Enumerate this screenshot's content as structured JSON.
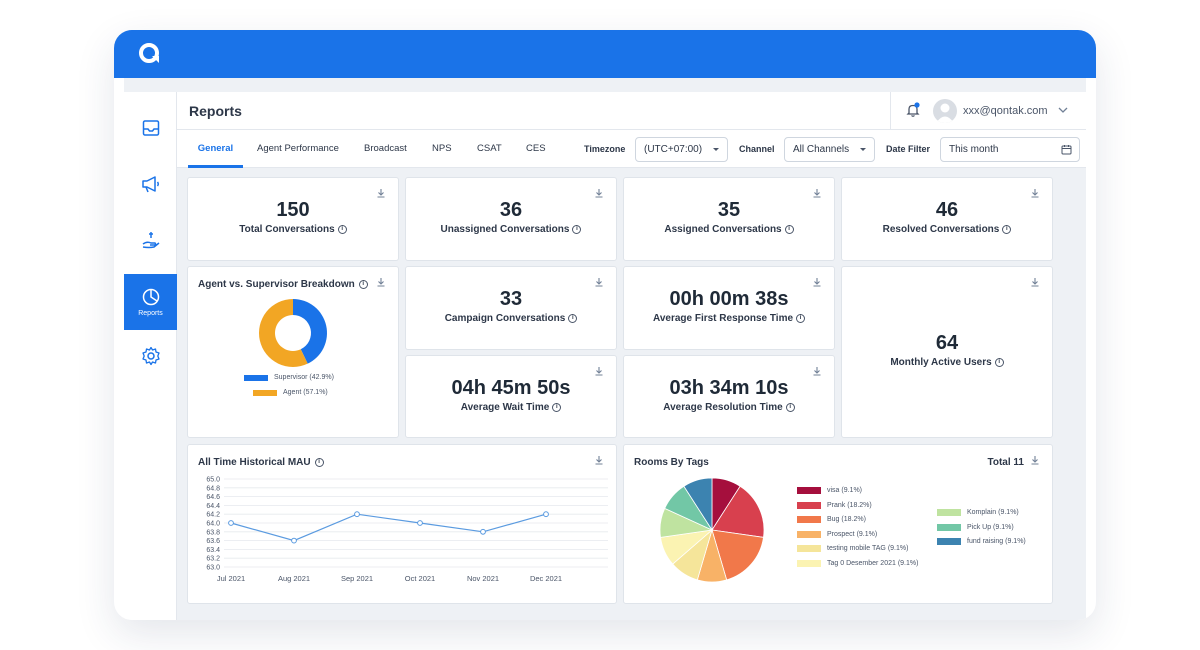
{
  "header": {
    "title": "Reports",
    "user_email": "xxx@qontak.com"
  },
  "sidebar": {
    "items": [
      {
        "icon": "inbox-icon"
      },
      {
        "icon": "megaphone-icon"
      },
      {
        "icon": "hand-coin-icon"
      },
      {
        "icon": "pie-chart-icon",
        "label": "Reports",
        "active": true
      },
      {
        "icon": "gear-icon"
      }
    ]
  },
  "tabs": [
    "General",
    "Agent Performance",
    "Broadcast",
    "NPS",
    "CSAT",
    "CES"
  ],
  "filters": {
    "timezone_label": "Timezone",
    "timezone_value": "(UTC+07:00)",
    "channel_label": "Channel",
    "channel_value": "All Channels",
    "date_label": "Date Filter",
    "date_value": "This month"
  },
  "stats": {
    "total": {
      "value": "150",
      "label": "Total Conversations"
    },
    "unassigned": {
      "value": "36",
      "label": "Unassigned Conversations"
    },
    "assigned": {
      "value": "35",
      "label": "Assigned Conversations"
    },
    "resolved": {
      "value": "46",
      "label": "Resolved Conversations"
    },
    "campaign": {
      "value": "33",
      "label": "Campaign Conversations"
    },
    "first_response": {
      "value": "00h 00m 38s",
      "label": "Average First Response Time"
    },
    "wait": {
      "value": "04h 45m 50s",
      "label": "Average Wait Time"
    },
    "resolution": {
      "value": "03h 34m 10s",
      "label": "Average Resolution Time"
    },
    "mau": {
      "value": "64",
      "label": "Monthly Active Users"
    }
  },
  "breakdown": {
    "title": "Agent vs. Supervisor Breakdown",
    "legend": [
      {
        "label": "Supervisor (42.9%)",
        "color": "#1a73e8"
      },
      {
        "label": "Agent (57.1%)",
        "color": "#f2a624"
      }
    ]
  },
  "mau_chart": {
    "title": "All Time Historical MAU"
  },
  "rooms": {
    "title": "Rooms By Tags",
    "total_label": "Total 11",
    "legend_left": [
      {
        "label": "visa (9.1%)",
        "color": "#a50f3d"
      },
      {
        "label": "Prank (18.2%)",
        "color": "#d8404e"
      },
      {
        "label": "Bug (18.2%)",
        "color": "#f1784a"
      },
      {
        "label": "Prospect (9.1%)",
        "color": "#f8b267"
      },
      {
        "label": "testing mobile TAG (9.1%)",
        "color": "#f5e59a"
      },
      {
        "label": "Tag 0 Desember 2021 (9.1%)",
        "color": "#fbf3b2"
      }
    ],
    "legend_right": [
      {
        "label": "Komplain (9.1%)",
        "color": "#bfe3a0"
      },
      {
        "label": "Pick Up (9.1%)",
        "color": "#72c7a6"
      },
      {
        "label": "fund raising (9.1%)",
        "color": "#3c83b0"
      }
    ]
  },
  "chart_data": [
    {
      "type": "pie",
      "title": "Agent vs. Supervisor Breakdown",
      "categories": [
        "Supervisor",
        "Agent"
      ],
      "values": [
        42.9,
        57.1
      ],
      "colors": [
        "#1a73e8",
        "#f2a624"
      ],
      "donut": true
    },
    {
      "type": "line",
      "title": "All Time Historical MAU",
      "x": [
        "Jul 2021",
        "Aug 2021",
        "Sep 2021",
        "Oct 2021",
        "Nov 2021",
        "Dec 2021"
      ],
      "y": [
        64.0,
        63.6,
        64.2,
        64.0,
        63.8,
        64.2
      ],
      "yticks": [
        "65.0",
        "64.8",
        "64.6",
        "64.4",
        "64.2",
        "64.0",
        "63.8",
        "63.6",
        "63.4",
        "63.2",
        "63.0"
      ],
      "ylim": [
        63.0,
        65.0
      ],
      "grid": true,
      "color": "#5b9be0"
    },
    {
      "type": "pie",
      "title": "Rooms By Tags",
      "categories": [
        "visa",
        "Prank",
        "Bug",
        "Prospect",
        "testing mobile TAG",
        "Tag 0 Desember 2021",
        "Komplain",
        "Pick Up",
        "fund raising"
      ],
      "values": [
        9.1,
        18.2,
        18.2,
        9.1,
        9.1,
        9.1,
        9.1,
        9.1,
        9.1
      ],
      "colors": [
        "#a50f3d",
        "#d8404e",
        "#f1784a",
        "#f8b267",
        "#f5e59a",
        "#fbf3b2",
        "#bfe3a0",
        "#72c7a6",
        "#3c83b0"
      ]
    }
  ]
}
